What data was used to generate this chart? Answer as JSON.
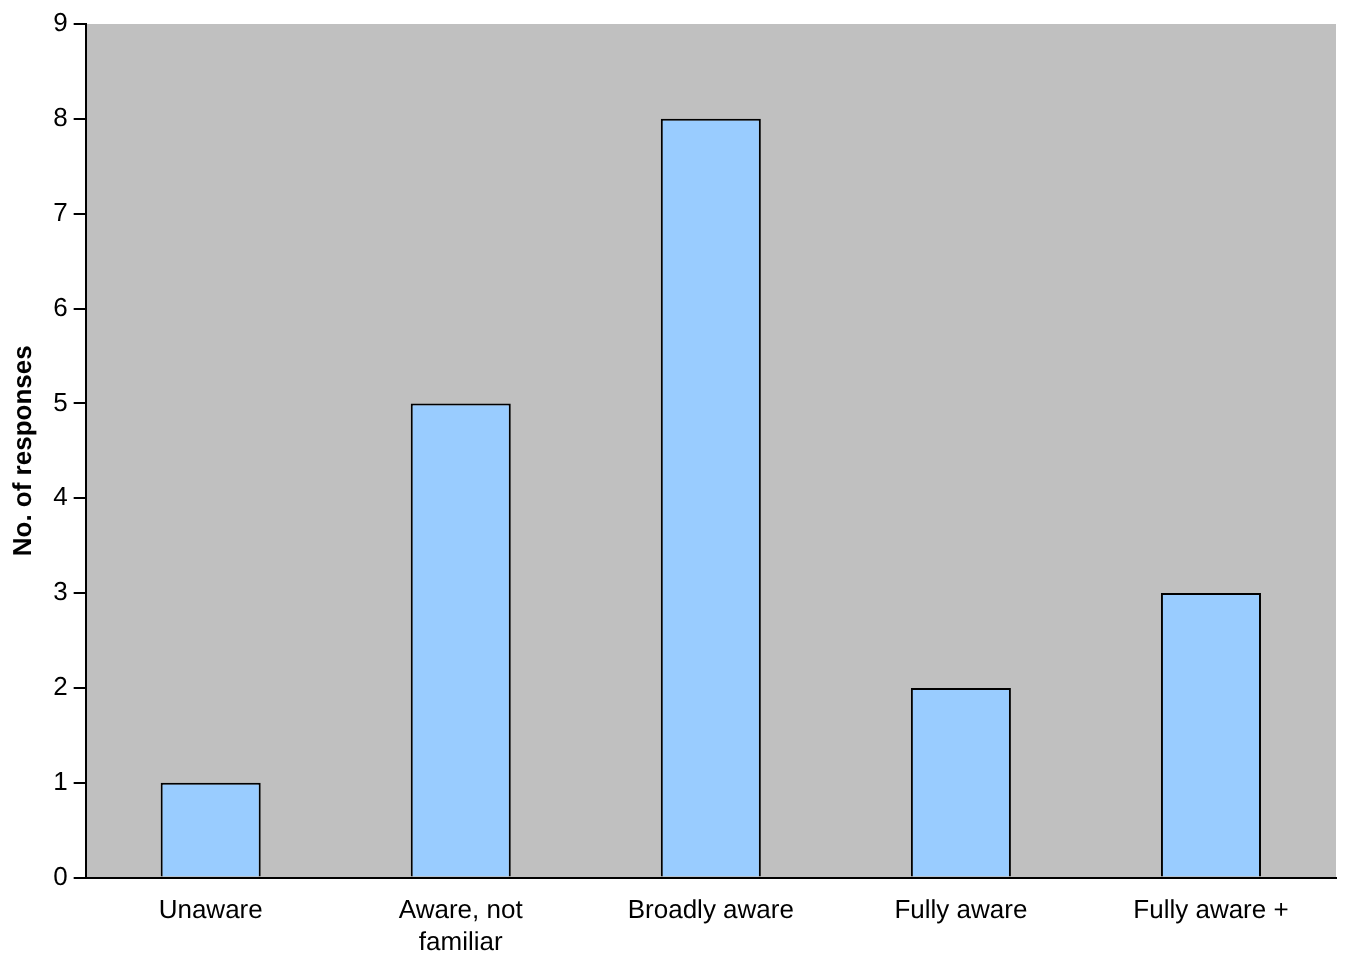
{
  "chart_data": {
    "type": "bar",
    "ylabel": "No. of responses",
    "categories": [
      "Unaware",
      "Aware, not familiar",
      "Broadly aware",
      "Fully aware",
      "Fully aware +"
    ],
    "values": [
      1,
      5,
      8,
      2,
      3
    ],
    "color": "#99ccff",
    "ylim": [
      0,
      9
    ],
    "yticks": [
      0,
      1,
      2,
      3,
      4,
      5,
      6,
      7,
      8,
      9
    ],
    "grid": false,
    "legend": false
  }
}
